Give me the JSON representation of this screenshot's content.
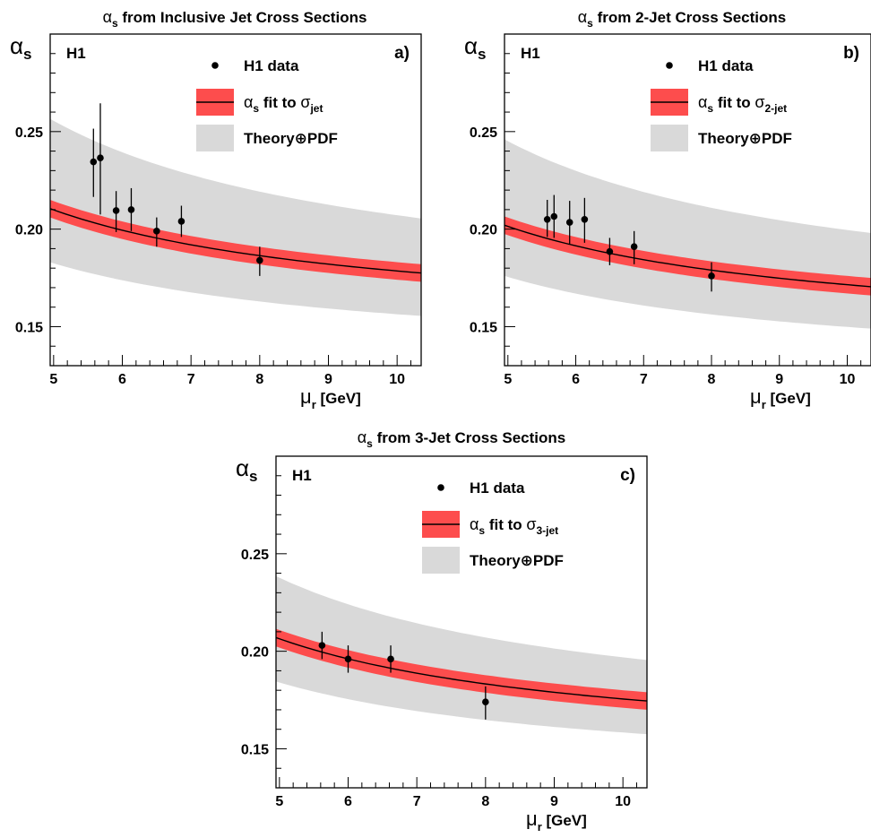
{
  "chart_data": [
    {
      "type": "scatter",
      "title_symbol": "α",
      "title_sub": "s",
      "title_rest": " from Inclusive Jet Cross Sections",
      "ylabel_symbol": "α",
      "ylabel_sub": "s",
      "xlabel_symbol": "μ",
      "xlabel_sub": "r",
      "xlabel_unit": "[GeV]",
      "xticks": [
        "5",
        "6",
        "7",
        "8",
        "9",
        "10"
      ],
      "yticks": [
        "0.15",
        "0.20",
        "0.25"
      ],
      "xlim": [
        4.95,
        10.35
      ],
      "ylim": [
        0.13,
        0.3
      ],
      "experiment": "H1",
      "panel_label": "a)",
      "legend": {
        "data": "H1 data",
        "fit_pre": "α",
        "fit_sub1": "s",
        "fit_mid": " fit to ",
        "fit_sym": "σ",
        "fit_sub2": "jet",
        "theory": "Theory⊕PDF"
      },
      "fit_endpoints": [
        0.2105,
        0.1775
      ],
      "red_band_halfwidth": 0.0045,
      "grey_band_upper": [
        0.2565,
        0.2055
      ],
      "grey_band_lower": [
        0.183,
        0.1555
      ],
      "data_points": [
        {
          "x": 5.58,
          "y": 0.2345,
          "err_lo": 0.018,
          "err_hi": 0.017
        },
        {
          "x": 5.68,
          "y": 0.2365,
          "err_lo": 0.029,
          "err_hi": 0.028
        },
        {
          "x": 5.91,
          "y": 0.2095,
          "err_lo": 0.011,
          "err_hi": 0.01
        },
        {
          "x": 6.13,
          "y": 0.21,
          "err_lo": 0.011,
          "err_hi": 0.011
        },
        {
          "x": 6.5,
          "y": 0.199,
          "err_lo": 0.008,
          "err_hi": 0.007
        },
        {
          "x": 6.86,
          "y": 0.204,
          "err_lo": 0.008,
          "err_hi": 0.008
        },
        {
          "x": 8.0,
          "y": 0.184,
          "err_lo": 0.008,
          "err_hi": 0.007
        }
      ]
    },
    {
      "type": "scatter",
      "title_symbol": "α",
      "title_sub": "s",
      "title_rest": " from 2-Jet Cross Sections",
      "ylabel_symbol": "α",
      "ylabel_sub": "s",
      "xlabel_symbol": "μ",
      "xlabel_sub": "r",
      "xlabel_unit": "[GeV]",
      "xticks": [
        "5",
        "6",
        "7",
        "8",
        "9",
        "10"
      ],
      "yticks": [
        "0.15",
        "0.20",
        "0.25"
      ],
      "xlim": [
        4.95,
        10.35
      ],
      "ylim": [
        0.13,
        0.3
      ],
      "experiment": "H1",
      "panel_label": "b)",
      "legend": {
        "data": "H1 data",
        "fit_pre": "α",
        "fit_sub1": "s",
        "fit_mid": " fit to ",
        "fit_sym": "σ",
        "fit_sub2": "2-jet",
        "theory": "Theory⊕PDF"
      },
      "fit_endpoints": [
        0.202,
        0.1705
      ],
      "red_band_halfwidth": 0.0045,
      "grey_band_upper": [
        0.246,
        0.198
      ],
      "grey_band_lower": [
        0.176,
        0.149
      ],
      "data_points": [
        {
          "x": 5.58,
          "y": 0.205,
          "err_lo": 0.009,
          "err_hi": 0.01
        },
        {
          "x": 5.68,
          "y": 0.2065,
          "err_lo": 0.011,
          "err_hi": 0.011
        },
        {
          "x": 5.91,
          "y": 0.2035,
          "err_lo": 0.011,
          "err_hi": 0.011
        },
        {
          "x": 6.13,
          "y": 0.205,
          "err_lo": 0.012,
          "err_hi": 0.011
        },
        {
          "x": 6.5,
          "y": 0.1885,
          "err_lo": 0.007,
          "err_hi": 0.007
        },
        {
          "x": 6.86,
          "y": 0.191,
          "err_lo": 0.009,
          "err_hi": 0.008
        },
        {
          "x": 8.0,
          "y": 0.176,
          "err_lo": 0.008,
          "err_hi": 0.007
        }
      ]
    },
    {
      "type": "scatter",
      "title_symbol": "α",
      "title_sub": "s",
      "title_rest": " from 3-Jet Cross Sections",
      "ylabel_symbol": "α",
      "ylabel_sub": "s",
      "xlabel_symbol": "μ",
      "xlabel_sub": "r",
      "xlabel_unit": "[GeV]",
      "xticks": [
        "5",
        "6",
        "7",
        "8",
        "9",
        "10"
      ],
      "yticks": [
        "0.15",
        "0.20",
        "0.25"
      ],
      "xlim": [
        4.95,
        10.35
      ],
      "ylim": [
        0.13,
        0.3
      ],
      "experiment": "H1",
      "panel_label": "c)",
      "legend": {
        "data": "H1 data",
        "fit_pre": "α",
        "fit_sub1": "s",
        "fit_mid": " fit to ",
        "fit_sym": "σ",
        "fit_sub2": "3-jet",
        "theory": "Theory⊕PDF"
      },
      "fit_endpoints": [
        0.207,
        0.1745
      ],
      "red_band_halfwidth": 0.0045,
      "grey_band_upper": [
        0.2385,
        0.1955
      ],
      "grey_band_lower": [
        0.1845,
        0.1575
      ],
      "data_points": [
        {
          "x": 5.62,
          "y": 0.203,
          "err_lo": 0.007,
          "err_hi": 0.007
        },
        {
          "x": 6.0,
          "y": 0.196,
          "err_lo": 0.007,
          "err_hi": 0.007
        },
        {
          "x": 6.62,
          "y": 0.196,
          "err_lo": 0.007,
          "err_hi": 0.007
        },
        {
          "x": 8.0,
          "y": 0.174,
          "err_lo": 0.009,
          "err_hi": 0.008
        }
      ]
    }
  ],
  "colors": {
    "red_band": "#fd4d4d",
    "grey_band": "#d9d9d9",
    "fit_line": "#000000",
    "points": "#000000"
  }
}
